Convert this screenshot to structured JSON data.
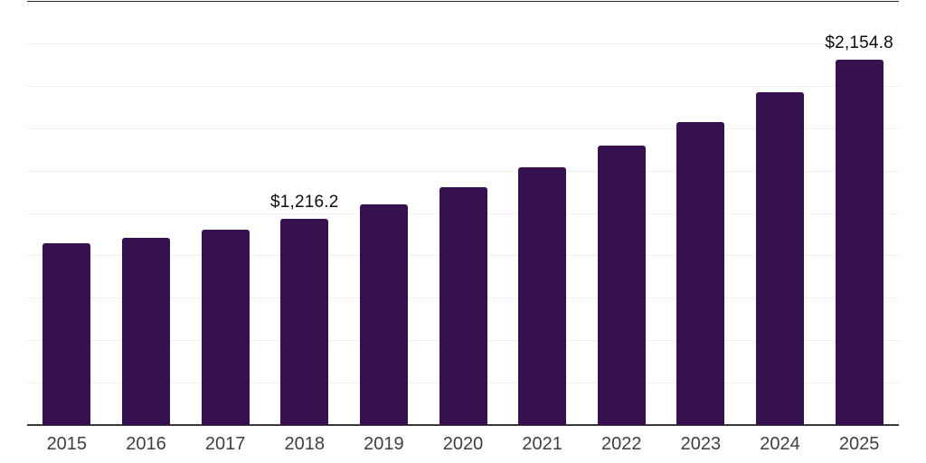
{
  "chart_data": {
    "type": "bar",
    "title": "",
    "xlabel": "",
    "ylabel": "",
    "categories": [
      "2015",
      "2016",
      "2017",
      "2018",
      "2019",
      "2020",
      "2021",
      "2022",
      "2023",
      "2024",
      "2025"
    ],
    "values": [
      1072.6,
      1104.8,
      1152.3,
      1216.2,
      1302.9,
      1400.5,
      1521.8,
      1645.9,
      1788.1,
      1959.6,
      2154.8
    ],
    "data_labels": [
      "",
      "",
      "",
      "$1,216.2",
      "",
      "",
      "",
      "",
      "",
      "",
      "$2,154.8"
    ],
    "ylim": [
      0,
      2500
    ],
    "gridline_step": 250,
    "grid": "horizontal-light",
    "legend_position": "none",
    "y_tick_labels_visible": false,
    "colors": {
      "bar": "#35114F",
      "gridline": "#f1f1f3",
      "top_rule": "#2b2b2b",
      "axis_line": "#3a3a3a",
      "value_label_text": "#0d0d0d",
      "axis_label_text": "#3f3f3f",
      "background": "#ffffff"
    }
  }
}
